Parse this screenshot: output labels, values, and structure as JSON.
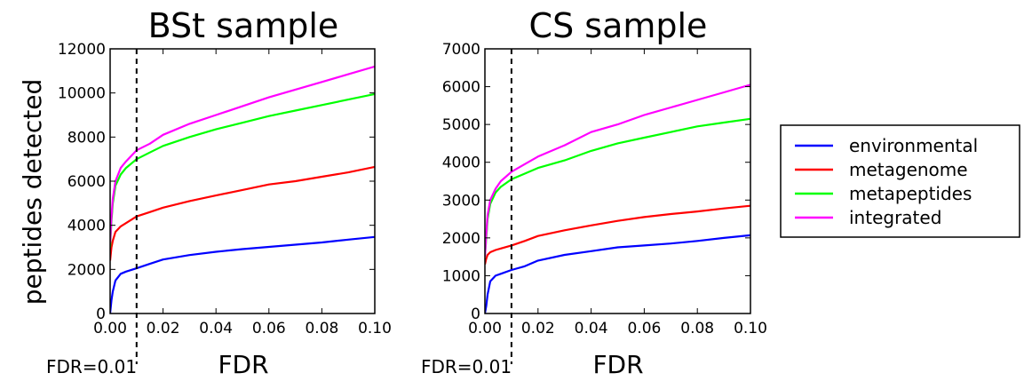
{
  "figure": {
    "ylabel": "peptides detected",
    "legend": {
      "position": "right",
      "entries": [
        {
          "name": "environmental",
          "color": "#0000ff"
        },
        {
          "name": "metagenome",
          "color": "#ff0000"
        },
        {
          "name": "metapeptides",
          "color": "#00ff00"
        },
        {
          "name": "integrated",
          "color": "#ff00ff"
        }
      ]
    }
  },
  "chart_data": [
    {
      "type": "line",
      "title": "BSt sample",
      "xlabel": "FDR",
      "ylabel": "peptides detected",
      "xlim": [
        0,
        0.1
      ],
      "ylim": [
        0,
        12000
      ],
      "xticks": [
        "0.00",
        "0.02",
        "0.04",
        "0.06",
        "0.08",
        "0.10"
      ],
      "yticks": [
        "0",
        "2000",
        "4000",
        "6000",
        "8000",
        "10000",
        "12000"
      ],
      "vline": {
        "x": 0.01,
        "label": "FDR=0.01",
        "style": "dashed"
      },
      "series": [
        {
          "name": "environmental",
          "color": "#0000ff",
          "x": [
            0,
            0.0005,
            0.001,
            0.002,
            0.004,
            0.006,
            0.01,
            0.015,
            0.02,
            0.03,
            0.04,
            0.05,
            0.06,
            0.07,
            0.08,
            0.09,
            0.1
          ],
          "y": [
            0,
            600,
            1000,
            1500,
            1800,
            1900,
            2050,
            2250,
            2450,
            2650,
            2800,
            2920,
            3020,
            3120,
            3220,
            3350,
            3470
          ]
        },
        {
          "name": "metagenome",
          "color": "#ff0000",
          "x": [
            0,
            0.0005,
            0.001,
            0.002,
            0.004,
            0.006,
            0.01,
            0.015,
            0.02,
            0.03,
            0.04,
            0.05,
            0.06,
            0.07,
            0.08,
            0.09,
            0.1
          ],
          "y": [
            2400,
            3000,
            3300,
            3700,
            3950,
            4100,
            4400,
            4600,
            4800,
            5100,
            5350,
            5600,
            5850,
            6000,
            6200,
            6400,
            6650
          ]
        },
        {
          "name": "metapeptides",
          "color": "#00ff00",
          "x": [
            0,
            0.0005,
            0.001,
            0.002,
            0.004,
            0.006,
            0.01,
            0.015,
            0.02,
            0.03,
            0.04,
            0.05,
            0.06,
            0.07,
            0.08,
            0.09,
            0.1
          ],
          "y": [
            3000,
            4200,
            5000,
            5800,
            6300,
            6600,
            7000,
            7300,
            7600,
            8000,
            8350,
            8650,
            8950,
            9200,
            9450,
            9700,
            9950
          ]
        },
        {
          "name": "integrated",
          "color": "#ff00ff",
          "x": [
            0,
            0.0005,
            0.001,
            0.002,
            0.004,
            0.006,
            0.01,
            0.015,
            0.02,
            0.03,
            0.04,
            0.05,
            0.06,
            0.07,
            0.08,
            0.09,
            0.1
          ],
          "y": [
            3200,
            4400,
            5200,
            6000,
            6600,
            6900,
            7400,
            7700,
            8100,
            8600,
            9000,
            9400,
            9800,
            10150,
            10500,
            10850,
            11200
          ]
        }
      ]
    },
    {
      "type": "line",
      "title": "CS sample",
      "xlabel": "FDR",
      "ylabel": "",
      "xlim": [
        0,
        0.1
      ],
      "ylim": [
        0,
        7000
      ],
      "xticks": [
        "0.00",
        "0.02",
        "0.04",
        "0.06",
        "0.08",
        "0.10"
      ],
      "yticks": [
        "0",
        "1000",
        "2000",
        "3000",
        "4000",
        "5000",
        "6000",
        "7000"
      ],
      "vline": {
        "x": 0.01,
        "label": "FDR=0.01",
        "style": "dashed"
      },
      "series": [
        {
          "name": "environmental",
          "color": "#0000ff",
          "x": [
            0,
            0.0005,
            0.001,
            0.002,
            0.004,
            0.006,
            0.01,
            0.015,
            0.02,
            0.03,
            0.04,
            0.05,
            0.06,
            0.07,
            0.08,
            0.09,
            0.1
          ],
          "y": [
            0,
            200,
            500,
            850,
            1000,
            1050,
            1150,
            1250,
            1400,
            1550,
            1650,
            1750,
            1800,
            1850,
            1920,
            2000,
            2070
          ]
        },
        {
          "name": "metagenome",
          "color": "#ff0000",
          "x": [
            0,
            0.0005,
            0.001,
            0.002,
            0.004,
            0.006,
            0.01,
            0.015,
            0.02,
            0.03,
            0.04,
            0.05,
            0.06,
            0.07,
            0.08,
            0.09,
            0.1
          ],
          "y": [
            1300,
            1450,
            1550,
            1620,
            1680,
            1720,
            1800,
            1920,
            2050,
            2200,
            2330,
            2450,
            2550,
            2630,
            2700,
            2780,
            2850
          ]
        },
        {
          "name": "metapeptides",
          "color": "#00ff00",
          "x": [
            0,
            0.0005,
            0.001,
            0.002,
            0.004,
            0.006,
            0.01,
            0.015,
            0.02,
            0.03,
            0.04,
            0.05,
            0.06,
            0.07,
            0.08,
            0.09,
            0.1
          ],
          "y": [
            1500,
            2000,
            2500,
            2900,
            3200,
            3350,
            3550,
            3700,
            3850,
            4050,
            4300,
            4500,
            4650,
            4800,
            4950,
            5050,
            5150
          ]
        },
        {
          "name": "integrated",
          "color": "#ff00ff",
          "x": [
            0,
            0.0005,
            0.001,
            0.002,
            0.004,
            0.006,
            0.01,
            0.015,
            0.02,
            0.03,
            0.04,
            0.05,
            0.06,
            0.07,
            0.08,
            0.09,
            0.1
          ],
          "y": [
            1500,
            2100,
            2600,
            3000,
            3300,
            3500,
            3750,
            3950,
            4150,
            4450,
            4800,
            5000,
            5250,
            5450,
            5650,
            5850,
            6050
          ]
        }
      ]
    }
  ]
}
